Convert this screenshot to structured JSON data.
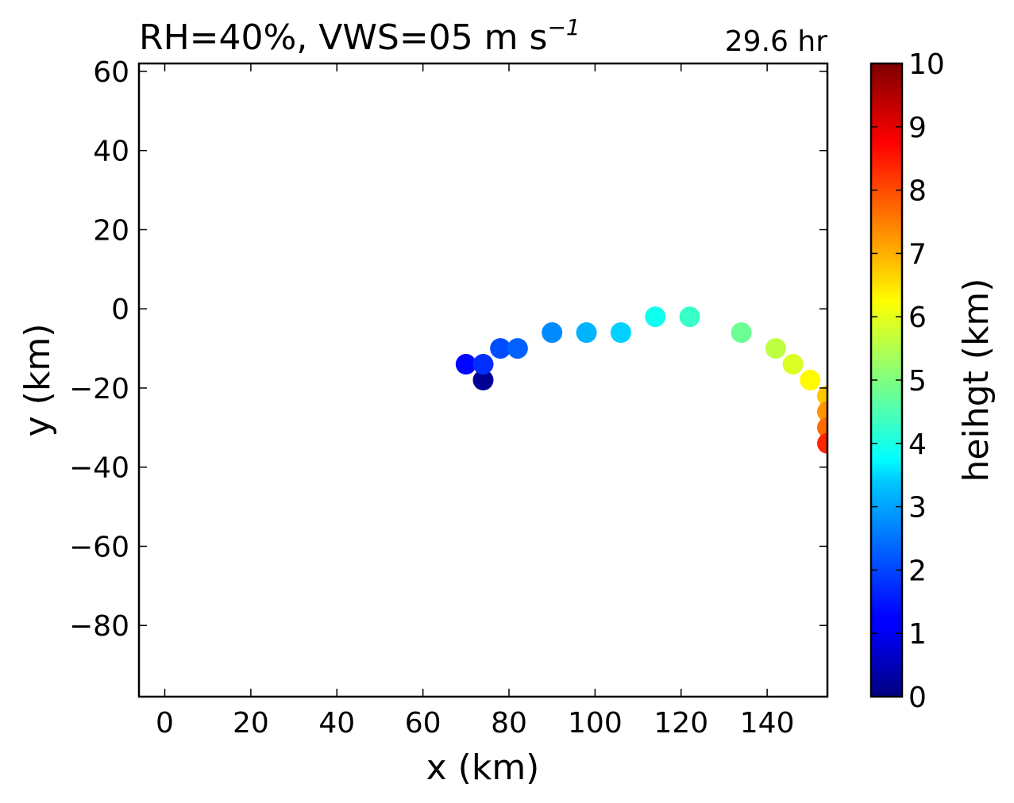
{
  "chart_data": {
    "type": "scatter",
    "title_main": "RH=40%, VWS=05 m s",
    "title_sup": "−1",
    "time_label": "29.6 hr",
    "time_label_color": "#0000ff",
    "xlabel": "x (km)",
    "ylabel": "y (km)",
    "xlim": [
      -6,
      154
    ],
    "ylim": [
      -98,
      62
    ],
    "xticks": [
      0,
      20,
      40,
      60,
      80,
      100,
      120,
      140
    ],
    "xtick_labels": [
      "0",
      "20",
      "40",
      "60",
      "80",
      "100",
      "120",
      "140"
    ],
    "yticks": [
      60,
      40,
      20,
      0,
      -20,
      -40,
      -60,
      -80
    ],
    "ytick_labels": [
      "60",
      "40",
      "20",
      "0",
      "−20",
      "−40",
      "−60",
      "−80"
    ],
    "colorbar": {
      "label": "heihgt (km)",
      "range": [
        0,
        10
      ],
      "ticks": [
        0,
        1,
        2,
        3,
        4,
        5,
        6,
        7,
        8,
        9,
        10
      ],
      "tick_labels": [
        "0",
        "1",
        "2",
        "3",
        "4",
        "5",
        "6",
        "7",
        "8",
        "9",
        "10"
      ],
      "colormap": "jet"
    },
    "points": [
      {
        "x": 74,
        "y": -18,
        "z": 0.2
      },
      {
        "x": 70,
        "y": -14,
        "z": 1.3
      },
      {
        "x": 74,
        "y": -14,
        "z": 1.7
      },
      {
        "x": 78,
        "y": -10,
        "z": 2.0
      },
      {
        "x": 82,
        "y": -10,
        "z": 2.2
      },
      {
        "x": 90,
        "y": -6,
        "z": 2.6
      },
      {
        "x": 98,
        "y": -6,
        "z": 3.0
      },
      {
        "x": 106,
        "y": -6,
        "z": 3.3
      },
      {
        "x": 114,
        "y": -2,
        "z": 3.9
      },
      {
        "x": 122,
        "y": -2,
        "z": 4.3
      },
      {
        "x": 134,
        "y": -6,
        "z": 4.8
      },
      {
        "x": 142,
        "y": -10,
        "z": 5.6
      },
      {
        "x": 146,
        "y": -14,
        "z": 5.9
      },
      {
        "x": 150,
        "y": -18,
        "z": 6.3
      },
      {
        "x": 154,
        "y": -22,
        "z": 6.8
      },
      {
        "x": 154,
        "y": -26,
        "z": 7.3
      },
      {
        "x": 154,
        "y": -30,
        "z": 7.7
      },
      {
        "x": 154,
        "y": -34,
        "z": 8.4
      }
    ]
  }
}
